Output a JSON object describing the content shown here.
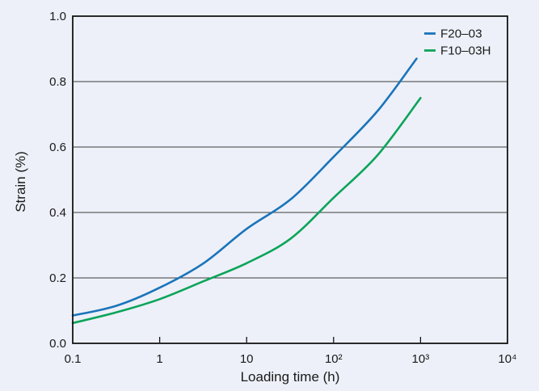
{
  "colors": {
    "background": "#edf0f8",
    "axis": "#141414",
    "grid": "#3d3d3d",
    "text": "#1a1a1a"
  },
  "chart_data": {
    "type": "line",
    "xlabel": "Loading time (h)",
    "ylabel": "Strain (%)",
    "x_scale": "log",
    "xlim": [
      0.1,
      10000
    ],
    "ylim": [
      0.0,
      1.0
    ],
    "grid": "horizontal-only",
    "legend_position": "top-right-inside",
    "x_ticks": [
      {
        "value": 0.1,
        "label": "0.1"
      },
      {
        "value": 1,
        "label": "1"
      },
      {
        "value": 10,
        "label": "10"
      },
      {
        "value": 100,
        "label": "10²"
      },
      {
        "value": 1000,
        "label": "10³"
      },
      {
        "value": 10000,
        "label": "10⁴"
      }
    ],
    "y_ticks": [
      {
        "value": 0.0,
        "label": "0.0"
      },
      {
        "value": 0.2,
        "label": "0.2"
      },
      {
        "value": 0.4,
        "label": "0.4"
      },
      {
        "value": 0.6,
        "label": "0.6"
      },
      {
        "value": 0.8,
        "label": "0.8"
      },
      {
        "value": 1.0,
        "label": "1.0"
      }
    ],
    "series": [
      {
        "name": "F20–03",
        "color": "#1a74ba",
        "points": [
          [
            0.1,
            0.085
          ],
          [
            0.32,
            0.115
          ],
          [
            1,
            0.17
          ],
          [
            3.2,
            0.245
          ],
          [
            10,
            0.35
          ],
          [
            32,
            0.44
          ],
          [
            100,
            0.57
          ],
          [
            320,
            0.71
          ],
          [
            900,
            0.87
          ]
        ]
      },
      {
        "name": "F10–03H",
        "color": "#0ca45a",
        "points": [
          [
            0.1,
            0.062
          ],
          [
            0.32,
            0.095
          ],
          [
            1,
            0.135
          ],
          [
            3.2,
            0.19
          ],
          [
            10,
            0.245
          ],
          [
            32,
            0.32
          ],
          [
            100,
            0.445
          ],
          [
            320,
            0.575
          ],
          [
            1000,
            0.75
          ]
        ]
      }
    ]
  }
}
